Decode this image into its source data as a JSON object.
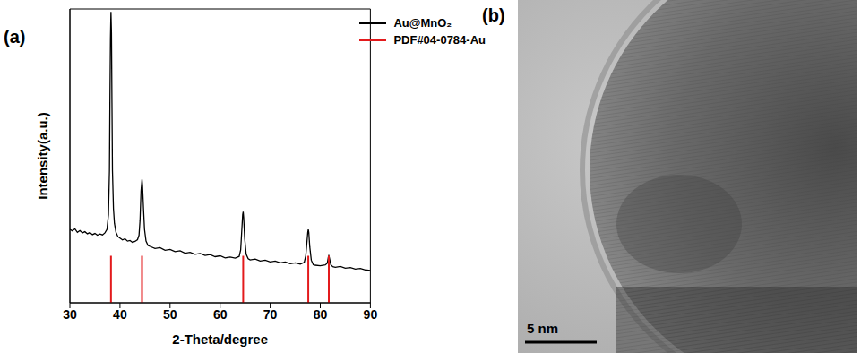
{
  "chart_data": {
    "type": "line",
    "label": "(a)",
    "x_label": "2-Theta/degree",
    "y_label": "Intensity(a.u.)",
    "xlim": [
      30,
      90
    ],
    "xticks": [
      30,
      40,
      50,
      60,
      70,
      80,
      90
    ],
    "ylim": [
      0,
      100
    ],
    "yticks": [],
    "tick_labels": "x",
    "legend": "upper right",
    "grid": false,
    "series": [
      {
        "name": "Au@MnO₂",
        "color": "#000000",
        "type": "line",
        "x": [
          30,
          30.5,
          31,
          31.5,
          32,
          32.5,
          33,
          33.5,
          34,
          34.5,
          35,
          35.5,
          36,
          36.5,
          37,
          37.4,
          37.7,
          37.9,
          38.0,
          38.1,
          38.2,
          38.3,
          38.4,
          38.5,
          38.7,
          38.9,
          39.2,
          39.6,
          40,
          40.5,
          41,
          41.5,
          42,
          42.5,
          43,
          43.5,
          43.8,
          44.0,
          44.2,
          44.4,
          44.5,
          44.7,
          44.9,
          45.2,
          45.6,
          46,
          47,
          48,
          49,
          50,
          51,
          52,
          53,
          54,
          55,
          56,
          57,
          58,
          59,
          60,
          61,
          62,
          63,
          63.8,
          64.1,
          64.3,
          64.5,
          64.6,
          64.7,
          64.9,
          65.2,
          65.6,
          66,
          67,
          68,
          69,
          70,
          71,
          72,
          73,
          74,
          75,
          76,
          76.8,
          77.1,
          77.3,
          77.5,
          77.6,
          77.7,
          77.9,
          78.2,
          78.6,
          79,
          80,
          81,
          81.4,
          81.6,
          81.7,
          81.8,
          82.1,
          82.5,
          83,
          84,
          85,
          86,
          87,
          88,
          89,
          90
        ],
        "values": [
          25,
          24.5,
          25.2,
          24,
          24.6,
          23.8,
          24.2,
          23.5,
          23.9,
          23.2,
          23.6,
          23,
          23.4,
          23.1,
          23.8,
          25,
          30,
          45,
          70,
          90,
          99,
          92,
          68,
          45,
          32,
          27,
          24,
          22.5,
          22,
          21.4,
          21.8,
          21,
          21.2,
          20.6,
          20.9,
          21.5,
          23,
          28,
          38,
          42,
          40,
          32,
          25,
          21,
          19.5,
          19.2,
          18.5,
          18.8,
          17.9,
          18.2,
          17.4,
          17.7,
          16.9,
          17.2,
          16.5,
          16.8,
          16.1,
          16.4,
          15.7,
          16,
          15.3,
          15.6,
          15.2,
          15.8,
          18,
          24,
          30,
          31,
          29,
          22,
          16.5,
          15,
          14.6,
          14.9,
          14.2,
          14.5,
          13.9,
          14.2,
          13.6,
          13.9,
          13.3,
          13.6,
          13.2,
          13.8,
          16,
          20,
          24,
          25,
          24,
          19,
          14.5,
          13,
          12.8,
          12.6,
          12.9,
          13.5,
          15.5,
          16,
          15.5,
          13,
          12.3,
          12.1,
          12.4,
          11.8,
          12,
          11.5,
          11.7,
          11.2,
          11
        ]
      },
      {
        "name": "PDF#04-0784-Au",
        "color": "#e31a1c",
        "type": "stick",
        "x": [
          38.2,
          44.4,
          64.6,
          77.6,
          81.7
        ],
        "values": [
          16,
          16,
          16,
          16,
          16
        ]
      }
    ]
  },
  "image": {
    "label": "(b)",
    "scale_bar": "5 nm"
  }
}
